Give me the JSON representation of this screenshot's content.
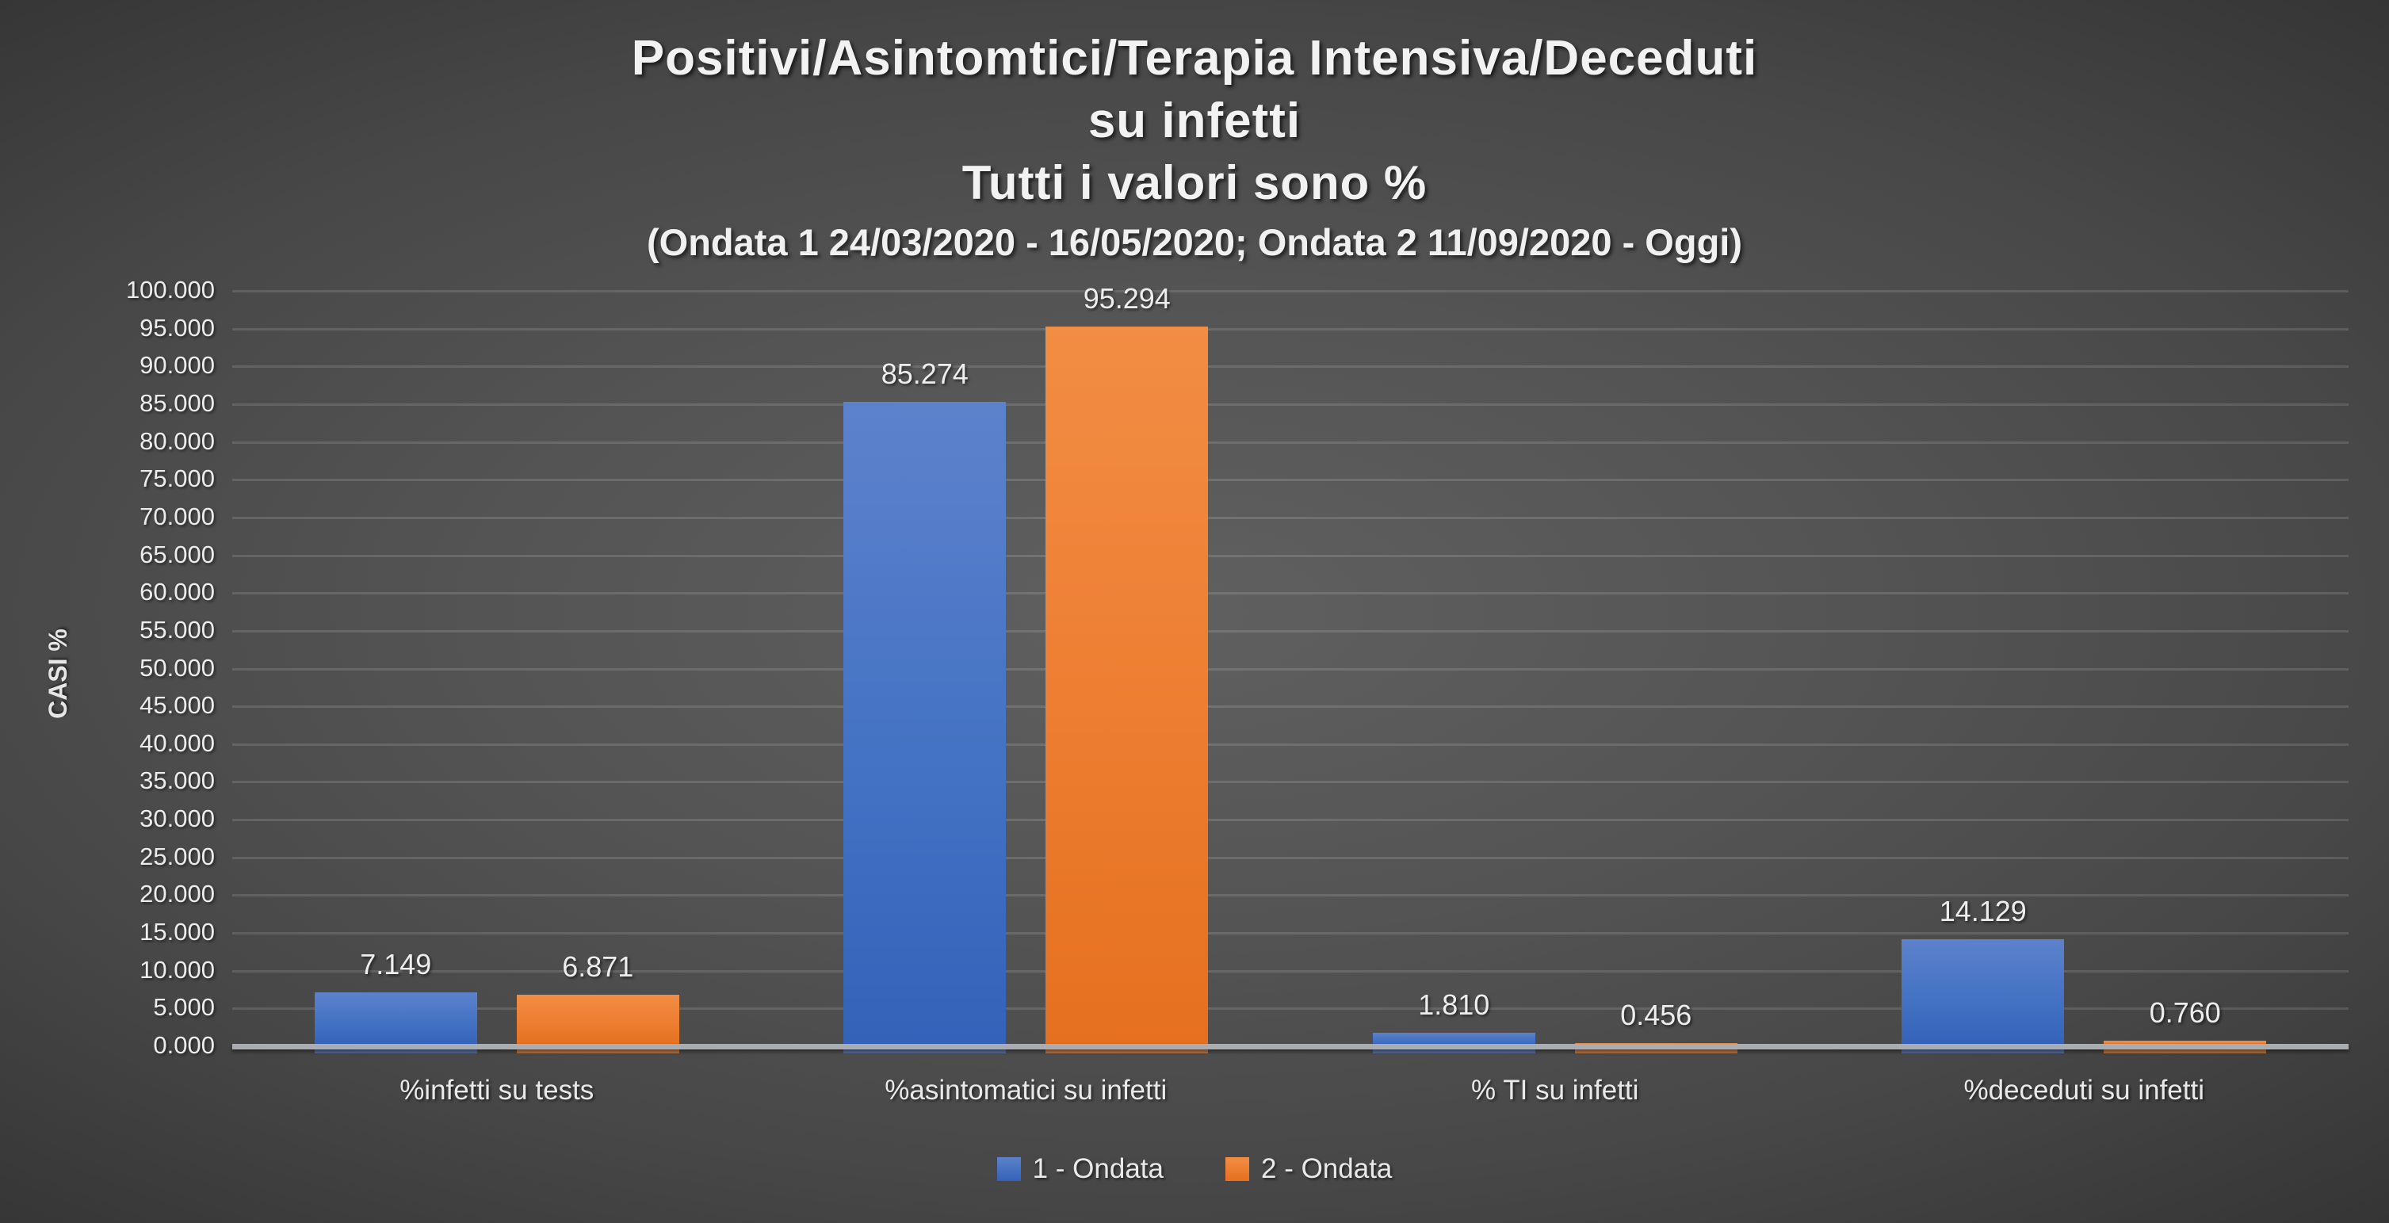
{
  "chart_data": {
    "type": "bar",
    "title_lines": [
      "Positivi/Asintomtici/Terapia Intensiva/Deceduti",
      "su infetti",
      "Tutti i valori sono %"
    ],
    "subtitle": "(Ondata 1 24/03/2020 - 16/05/2020; Ondata 2 11/09/2020 - Oggi)",
    "ylabel": "CASI %",
    "ylim": [
      0,
      100
    ],
    "ytick_step": 5,
    "ytick_labels": [
      "0.000",
      "5.000",
      "10.000",
      "15.000",
      "20.000",
      "25.000",
      "30.000",
      "35.000",
      "40.000",
      "45.000",
      "50.000",
      "55.000",
      "60.000",
      "65.000",
      "70.000",
      "75.000",
      "80.000",
      "85.000",
      "90.000",
      "95.000",
      "100.000"
    ],
    "grid": true,
    "legend_position": "bottom",
    "categories": [
      "%infetti su tests",
      "%asintomatici su infetti",
      "% TI su infetti",
      "%deceduti su infetti"
    ],
    "series": [
      {
        "name": "1 - Ondata",
        "color": "#4472C4",
        "gradient_top": "#5d82cc",
        "gradient_bottom": "#3462b9",
        "values": [
          7.149,
          85.274,
          1.81,
          14.129
        ],
        "value_labels": [
          "7.149",
          "85.274",
          "1.810",
          "14.129"
        ]
      },
      {
        "name": "2 - Ondata",
        "color": "#ED7D31",
        "gradient_top": "#f28d44",
        "gradient_bottom": "#e5701f",
        "values": [
          6.871,
          95.294,
          0.456,
          0.76
        ],
        "value_labels": [
          "6.871",
          "95.294",
          "0.456",
          "0.760"
        ]
      }
    ]
  }
}
